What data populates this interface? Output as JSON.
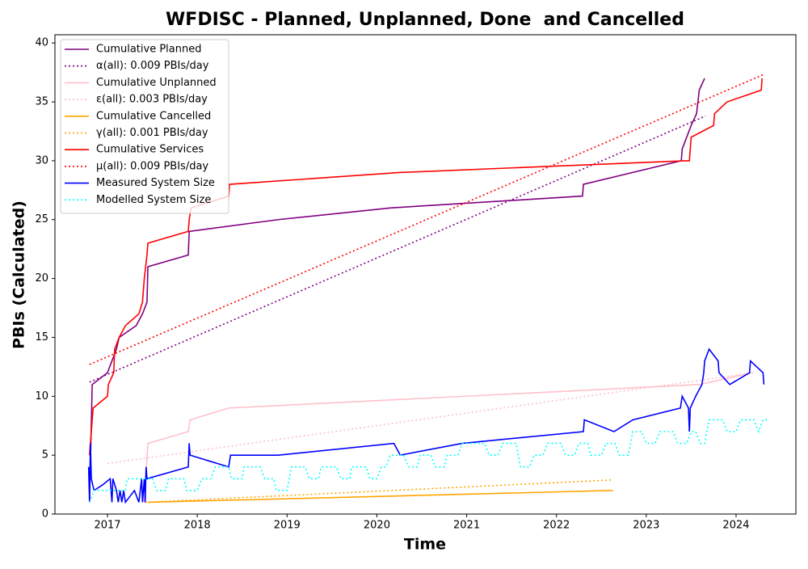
{
  "chart_data": {
    "type": "line",
    "title": "WFDISC - Planned, Unplanned, Done  and Cancelled",
    "xlabel": "Time",
    "ylabel": "PBIs (Calculated)",
    "xlim": [
      2016.415,
      2024.666
    ],
    "ylim": [
      0,
      40.7
    ],
    "xticks": [
      2017,
      2018,
      2019,
      2020,
      2021,
      2022,
      2023,
      2024
    ],
    "yticks": [
      0,
      5,
      10,
      15,
      20,
      25,
      30,
      35,
      40
    ],
    "grid": false,
    "legend": "upper left",
    "series": [
      {
        "name": "Cumulative Planned",
        "color": "#800080",
        "dash": "solid",
        "x": [
          2016.8,
          2016.83,
          2017.0,
          2017.05,
          2017.1,
          2017.13,
          2017.32,
          2017.39,
          2017.44,
          2017.45,
          2017.9,
          2017.91,
          2018.9,
          2020.16,
          2022.29,
          2022.3,
          2023.39,
          2023.4,
          2023.5,
          2023.56,
          2023.59,
          2023.65
        ],
        "values": [
          1,
          11,
          12,
          13,
          14,
          15,
          16,
          17,
          18,
          21,
          22,
          24,
          25,
          26,
          27,
          28,
          30,
          31,
          33,
          34,
          36,
          37
        ]
      },
      {
        "name": "α(all): 0.009 PBIs/day",
        "color": "#800080",
        "dash": "dotted",
        "x": [
          2016.8,
          2023.66
        ],
        "values": [
          11.2,
          33.8
        ]
      },
      {
        "name": "Cumulative Unplanned",
        "color": "#ffc0cb",
        "dash": "solid",
        "x": [
          2017.41,
          2017.45,
          2017.9,
          2017.92,
          2018.35,
          2023.6,
          2024.17
        ],
        "values": [
          1,
          6,
          7,
          8,
          9,
          11,
          12
        ]
      },
      {
        "name": "ε(all): 0.003 PBIs/day",
        "color": "#ffc0cb",
        "dash": "dotted",
        "x": [
          2017.0,
          2024.2
        ],
        "values": [
          4.3,
          12
        ]
      },
      {
        "name": "Cumulative Cancelled",
        "color": "#ffa500",
        "dash": "solid",
        "x": [
          2017.45,
          2022.63
        ],
        "values": [
          1,
          2
        ]
      },
      {
        "name": "γ(all): 0.001 PBIs/day",
        "color": "#ffa500",
        "dash": "dotted",
        "x": [
          2017.42,
          2022.63
        ],
        "values": [
          1,
          2.9
        ]
      },
      {
        "name": "Cumulative Services",
        "color": "#ff0000",
        "dash": "solid",
        "x": [
          2016.8,
          2016.82,
          2016.84,
          2017.0,
          2017.01,
          2017.07,
          2017.08,
          2017.13,
          2017.2,
          2017.35,
          2017.39,
          2017.41,
          2017.44,
          2017.45,
          2017.9,
          2017.91,
          2017.93,
          2018.35,
          2018.36,
          2020.25,
          2023.43,
          2023.48,
          2023.5,
          2023.75,
          2023.76,
          2023.9,
          2024.28,
          2024.29
        ],
        "values": [
          5,
          7,
          9,
          10,
          11,
          12,
          14,
          15,
          16,
          17,
          18,
          20,
          22,
          23,
          24,
          25,
          26,
          27,
          28,
          29,
          30,
          30,
          32,
          33,
          34,
          35,
          36,
          37
        ]
      },
      {
        "name": "μ(all): 0.009 PBIs/day",
        "color": "#ff0000",
        "dash": "dotted",
        "x": [
          2016.8,
          2024.3
        ],
        "values": [
          12.7,
          37.3
        ]
      },
      {
        "name": "Measured System Size",
        "color": "#0000ff",
        "dash": "solid",
        "x": [
          2016.79,
          2016.8,
          2016.81,
          2016.82,
          2016.85,
          2016.95,
          2017.03,
          2017.05,
          2017.06,
          2017.1,
          2017.12,
          2017.14,
          2017.16,
          2017.18,
          2017.2,
          2017.3,
          2017.35,
          2017.38,
          2017.39,
          2017.41,
          2017.42,
          2017.43,
          2017.44,
          2017.9,
          2017.91,
          2017.92,
          2018.35,
          2018.37,
          2018.9,
          2020.19,
          2020.26,
          2020.95,
          2022.3,
          2022.31,
          2022.64,
          2022.85,
          2023.38,
          2023.4,
          2023.47,
          2023.48,
          2023.49,
          2023.55,
          2023.62,
          2023.64,
          2023.65,
          2023.7,
          2023.8,
          2023.81,
          2023.93,
          2024.15,
          2024.16,
          2024.3,
          2024.31
        ],
        "values": [
          4,
          1,
          6,
          3,
          2,
          2.5,
          3,
          1,
          3,
          2,
          1,
          2,
          1,
          2,
          1,
          2,
          1,
          3,
          1,
          3,
          1,
          4,
          3,
          4,
          6,
          5,
          4,
          5,
          5,
          6,
          5,
          6,
          7,
          8,
          7,
          8,
          9,
          10,
          9,
          7,
          9,
          10,
          11,
          12,
          13,
          14,
          13,
          12,
          11,
          12,
          13,
          12,
          11
        ]
      },
      {
        "name": "Modelled System Size",
        "color": "#00ffff",
        "dash": "dotted",
        "x": [
          2016.8,
          2016.85,
          2017.2,
          2017.22,
          2017.5,
          2017.55,
          2017.65,
          2017.68,
          2017.85,
          2017.88,
          2018.0,
          2018.05,
          2018.15,
          2018.2,
          2018.35,
          2018.38,
          2018.5,
          2018.52,
          2018.7,
          2018.75,
          2018.85,
          2018.88,
          2019.0,
          2019.05,
          2019.2,
          2019.25,
          2019.35,
          2019.38,
          2019.55,
          2019.6,
          2019.7,
          2019.72,
          2019.88,
          2019.92,
          2020.0,
          2020.05,
          2020.1,
          2020.15,
          2020.3,
          2020.35,
          2020.45,
          2020.48,
          2020.6,
          2020.65,
          2020.75,
          2020.78,
          2020.9,
          2020.95,
          2021.2,
          2021.25,
          2021.35,
          2021.4,
          2021.55,
          2021.6,
          2021.7,
          2021.75,
          2021.85,
          2021.9,
          2022.05,
          2022.1,
          2022.2,
          2022.25,
          2022.35,
          2022.38,
          2022.5,
          2022.55,
          2022.65,
          2022.7,
          2022.8,
          2022.85,
          2022.95,
          2023.0,
          2023.1,
          2023.15,
          2023.3,
          2023.35,
          2023.45,
          2023.5,
          2023.55,
          2023.6,
          2023.65,
          2023.7,
          2023.85,
          2023.9,
          2024.0,
          2024.05,
          2024.2,
          2024.25,
          2024.3,
          2024.35
        ],
        "values": [
          1,
          2,
          2,
          3,
          3,
          2,
          2,
          3,
          3,
          2,
          2,
          3,
          3,
          4,
          4,
          3,
          3,
          4,
          4,
          3,
          3,
          2,
          2,
          4,
          4,
          3,
          3,
          4,
          4,
          3,
          3,
          4,
          4,
          3,
          3,
          4,
          4,
          5,
          5,
          4,
          4,
          5,
          5,
          4,
          4,
          5,
          5,
          6,
          6,
          5,
          5,
          6,
          6,
          4,
          4,
          5,
          5,
          6,
          6,
          5,
          5,
          6,
          6,
          5,
          5,
          6,
          6,
          5,
          5,
          7,
          7,
          6,
          6,
          7,
          7,
          6,
          6,
          7,
          7,
          6,
          6,
          8,
          8,
          7,
          7,
          8,
          8,
          7,
          8,
          8
        ]
      }
    ]
  }
}
